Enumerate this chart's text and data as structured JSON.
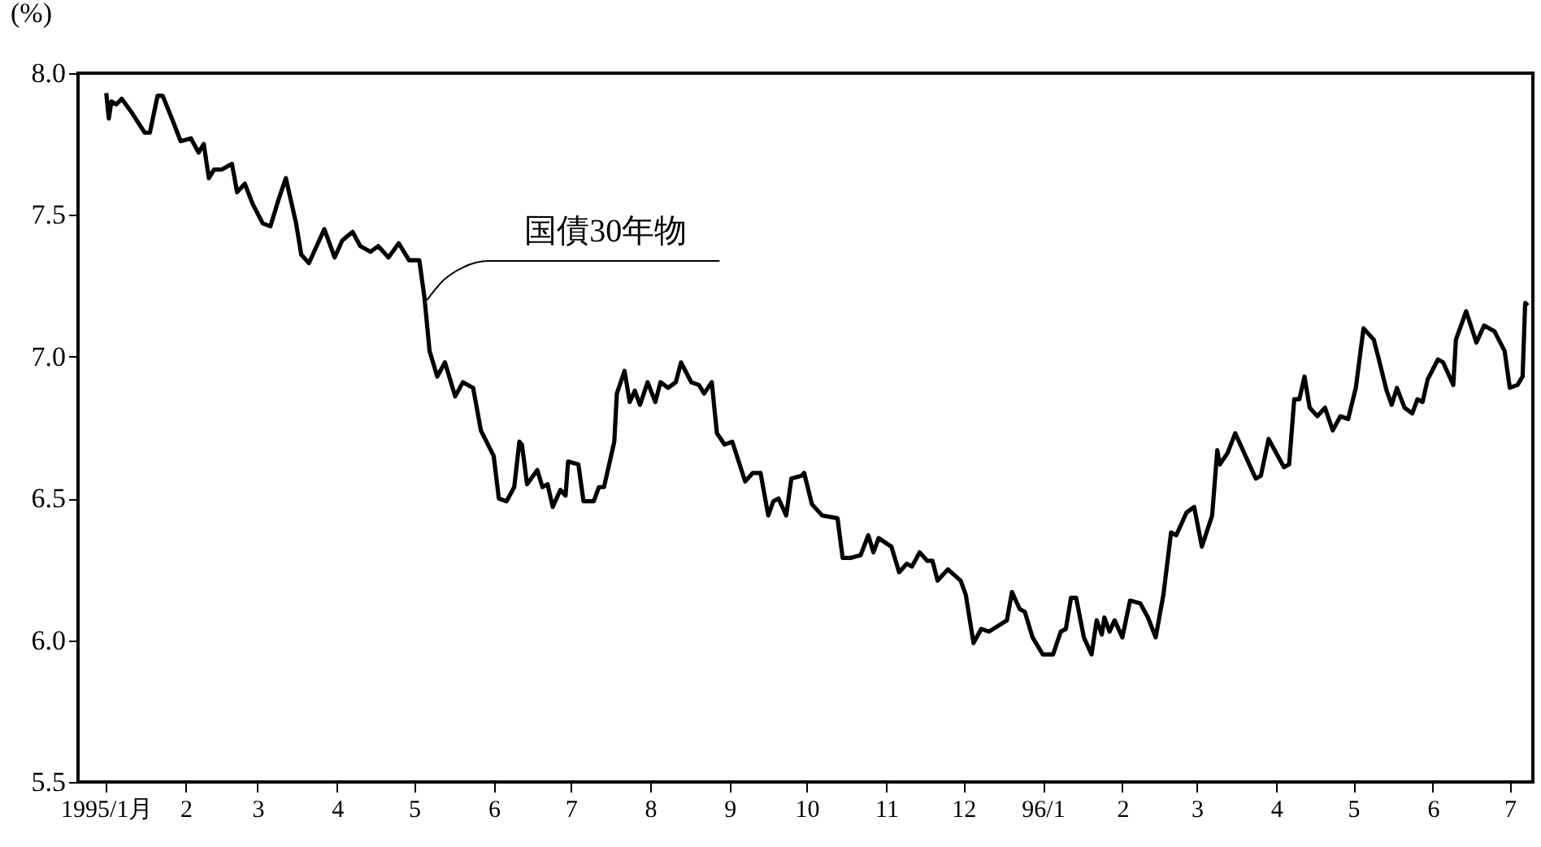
{
  "chart_data": {
    "type": "line",
    "ylabel": "(%)",
    "x": [
      "1995-01-01",
      "1995-01-02",
      "1995-01-03",
      "1995-01-05",
      "1995-01-07",
      "1995-01-11",
      "1995-01-16",
      "1995-01-18",
      "1995-01-21",
      "1995-01-23",
      "1995-01-27",
      "1995-01-30",
      "1995-02-03",
      "1995-02-06",
      "1995-02-08",
      "1995-02-10",
      "1995-02-12",
      "1995-02-15",
      "1995-02-19",
      "1995-02-21",
      "1995-02-24",
      "1995-02-27",
      "1995-03-03",
      "1995-03-06",
      "1995-03-09",
      "1995-03-12",
      "1995-03-16",
      "1995-03-18",
      "1995-03-21",
      "1995-03-24",
      "1995-03-27",
      "1995-03-31",
      "1995-04-03",
      "1995-04-07",
      "1995-04-10",
      "1995-04-14",
      "1995-04-17",
      "1995-04-21",
      "1995-04-25",
      "1995-04-29",
      "1995-05-03",
      "1995-05-05",
      "1995-05-07",
      "1995-05-10",
      "1995-05-13",
      "1995-05-17",
      "1995-05-20",
      "1995-05-24",
      "1995-05-27",
      "1995-06-01",
      "1995-06-03",
      "1995-06-06",
      "1995-06-09",
      "1995-06-11",
      "1995-06-12",
      "1995-06-14",
      "1995-06-18",
      "1995-06-20",
      "1995-06-22",
      "1995-06-24",
      "1995-06-27",
      "1995-06-29",
      "1995-06-30",
      "1995-07-04",
      "1995-07-06",
      "1995-07-10",
      "1995-07-12",
      "1995-07-14",
      "1995-07-18",
      "1995-07-19",
      "1995-07-22",
      "1995-07-24",
      "1995-07-26",
      "1995-07-28",
      "1995-07-31",
      "1995-08-03",
      "1995-08-05",
      "1995-08-08",
      "1995-08-11",
      "1995-08-13",
      "1995-08-17",
      "1995-08-20",
      "1995-08-22",
      "1995-08-25",
      "1995-08-27",
      "1995-08-30",
      "1995-09-02",
      "1995-09-07",
      "1995-09-10",
      "1995-09-13",
      "1995-09-16",
      "1995-09-18",
      "1995-09-20",
      "1995-09-23",
      "1995-09-25",
      "1995-09-29",
      "1995-09-30",
      "1995-10-03",
      "1995-10-07",
      "1995-10-13",
      "1995-10-15",
      "1995-10-18",
      "1995-10-22",
      "1995-10-25",
      "1995-10-27",
      "1995-10-29",
      "1995-11-03",
      "1995-11-06",
      "1995-11-09",
      "1995-11-11",
      "1995-11-14",
      "1995-11-17",
      "1995-11-19",
      "1995-11-21",
      "1995-11-25",
      "1995-11-30",
      "1995-12-02",
      "1995-12-05",
      "1995-12-08",
      "1995-12-11",
      "1995-12-18",
      "1995-12-20",
      "1995-12-23",
      "1995-12-25",
      "1995-12-28",
      "1996-01-01",
      "1996-01-05",
      "1996-01-08",
      "1996-01-10",
      "1996-01-12",
      "1996-01-14",
      "1996-01-17",
      "1996-01-20",
      "1996-01-22",
      "1996-01-24",
      "1996-01-25",
      "1996-01-27",
      "1996-01-29",
      "1996-02-01",
      "1996-02-04",
      "1996-02-08",
      "1996-02-11",
      "1996-02-14",
      "1996-02-17",
      "1996-02-20",
      "1996-02-22",
      "1996-02-26",
      "1996-02-29",
      "1996-03-03",
      "1996-03-07",
      "1996-03-09",
      "1996-03-10",
      "1996-03-13",
      "1996-03-16",
      "1996-03-18",
      "1996-03-22",
      "1996-03-24",
      "1996-03-26",
      "1996-03-29",
      "1996-04-01",
      "1996-04-04",
      "1996-04-06",
      "1996-04-08",
      "1996-04-10",
      "1996-04-12",
      "1996-04-14",
      "1996-04-17",
      "1996-04-20",
      "1996-04-23",
      "1996-04-26",
      "1996-04-29",
      "1996-05-02",
      "1996-05-05",
      "1996-05-09",
      "1996-05-11",
      "1996-05-14",
      "1996-05-16",
      "1996-05-18",
      "1996-05-21",
      "1996-05-24",
      "1996-05-26",
      "1996-05-28",
      "1996-05-30",
      "1996-06-03",
      "1996-06-05",
      "1996-06-09",
      "1996-06-10",
      "1996-06-14",
      "1996-06-18",
      "1996-06-21",
      "1996-06-25",
      "1996-06-29",
      "1996-07-01",
      "1996-07-04",
      "1996-07-06",
      "1996-07-07",
      "1996-07-08"
    ],
    "series": [
      {
        "color": "#000000",
        "values": [
          7.93,
          7.84,
          7.9,
          7.89,
          7.91,
          7.86,
          7.79,
          7.79,
          7.92,
          7.92,
          7.83,
          7.76,
          7.77,
          7.72,
          7.75,
          7.63,
          7.66,
          7.66,
          7.68,
          7.58,
          7.61,
          7.54,
          7.47,
          7.46,
          7.55,
          7.63,
          7.47,
          7.36,
          7.33,
          7.39,
          7.45,
          7.35,
          7.41,
          7.44,
          7.39,
          7.37,
          7.39,
          7.35,
          7.4,
          7.34,
          7.34,
          7.21,
          7.02,
          6.93,
          6.98,
          6.86,
          6.91,
          6.89,
          6.74,
          6.65,
          6.5,
          6.49,
          6.54,
          6.7,
          6.69,
          6.55,
          6.6,
          6.54,
          6.55,
          6.47,
          6.53,
          6.51,
          6.63,
          6.62,
          6.49,
          6.49,
          6.54,
          6.54,
          6.7,
          6.87,
          6.95,
          6.84,
          6.88,
          6.83,
          6.91,
          6.84,
          6.91,
          6.89,
          6.91,
          6.98,
          6.91,
          6.9,
          6.87,
          6.91,
          6.73,
          6.69,
          6.7,
          6.56,
          6.59,
          6.59,
          6.44,
          6.49,
          6.5,
          6.44,
          6.57,
          6.58,
          6.59,
          6.48,
          6.44,
          6.43,
          6.29,
          6.29,
          6.3,
          6.37,
          6.31,
          6.36,
          6.33,
          6.24,
          6.27,
          6.26,
          6.31,
          6.28,
          6.28,
          6.21,
          6.25,
          6.21,
          6.16,
          5.99,
          6.04,
          6.03,
          6.07,
          6.17,
          6.11,
          6.1,
          6.01,
          5.95,
          5.95,
          6.03,
          6.04,
          6.15,
          6.15,
          6.01,
          5.95,
          6.07,
          6.02,
          6.08,
          6.03,
          6.07,
          6.01,
          6.14,
          6.13,
          6.08,
          6.01,
          6.16,
          6.38,
          6.37,
          6.45,
          6.47,
          6.33,
          6.44,
          6.67,
          6.62,
          6.66,
          6.73,
          6.69,
          6.61,
          6.57,
          6.58,
          6.71,
          6.66,
          6.61,
          6.62,
          6.85,
          6.85,
          6.93,
          6.82,
          6.79,
          6.82,
          6.74,
          6.79,
          6.78,
          6.89,
          7.1,
          7.06,
          6.99,
          6.88,
          6.83,
          6.89,
          6.82,
          6.8,
          6.85,
          6.84,
          6.92,
          6.99,
          6.98,
          6.9,
          7.06,
          7.16,
          7.05,
          7.11,
          7.09,
          7.02,
          6.89,
          6.9,
          6.93,
          7.19,
          7.18
        ]
      }
    ],
    "xlim": [
      "1994-12-21",
      "1996-07-10"
    ],
    "xticks": [
      {
        "value": "1995-01-01",
        "label": "1995/1月"
      },
      {
        "value": "1995-02-01",
        "label": "2"
      },
      {
        "value": "1995-03-01",
        "label": "3"
      },
      {
        "value": "1995-04-01",
        "label": "4"
      },
      {
        "value": "1995-05-01",
        "label": "5"
      },
      {
        "value": "1995-06-01",
        "label": "6"
      },
      {
        "value": "1995-07-01",
        "label": "7"
      },
      {
        "value": "1995-08-01",
        "label": "8"
      },
      {
        "value": "1995-09-01",
        "label": "9"
      },
      {
        "value": "1995-10-01",
        "label": "10"
      },
      {
        "value": "1995-11-01",
        "label": "11"
      },
      {
        "value": "1995-12-01",
        "label": "12"
      },
      {
        "value": "1996-01-01",
        "label": "96/1"
      },
      {
        "value": "1996-02-01",
        "label": "2"
      },
      {
        "value": "1996-03-01",
        "label": "3"
      },
      {
        "value": "1996-04-01",
        "label": "4"
      },
      {
        "value": "1996-05-01",
        "label": "5"
      },
      {
        "value": "1996-06-01",
        "label": "6"
      },
      {
        "value": "1996-07-01",
        "label": "7"
      }
    ],
    "ylim": [
      5.5,
      8.0
    ],
    "yticks": [
      {
        "value": 5.5,
        "label": "5.5"
      },
      {
        "value": 6.0,
        "label": "6.0"
      },
      {
        "value": 6.5,
        "label": "6.5"
      },
      {
        "value": 7.0,
        "label": "7.0"
      },
      {
        "value": 7.5,
        "label": "7.5"
      },
      {
        "value": 8.0,
        "label": "8.0"
      }
    ],
    "grid": false,
    "marker": "none",
    "line_style": "solid",
    "annotations": [
      {
        "text": "国債30年物",
        "x": "1995-05-06",
        "y": 7.2
      }
    ]
  }
}
